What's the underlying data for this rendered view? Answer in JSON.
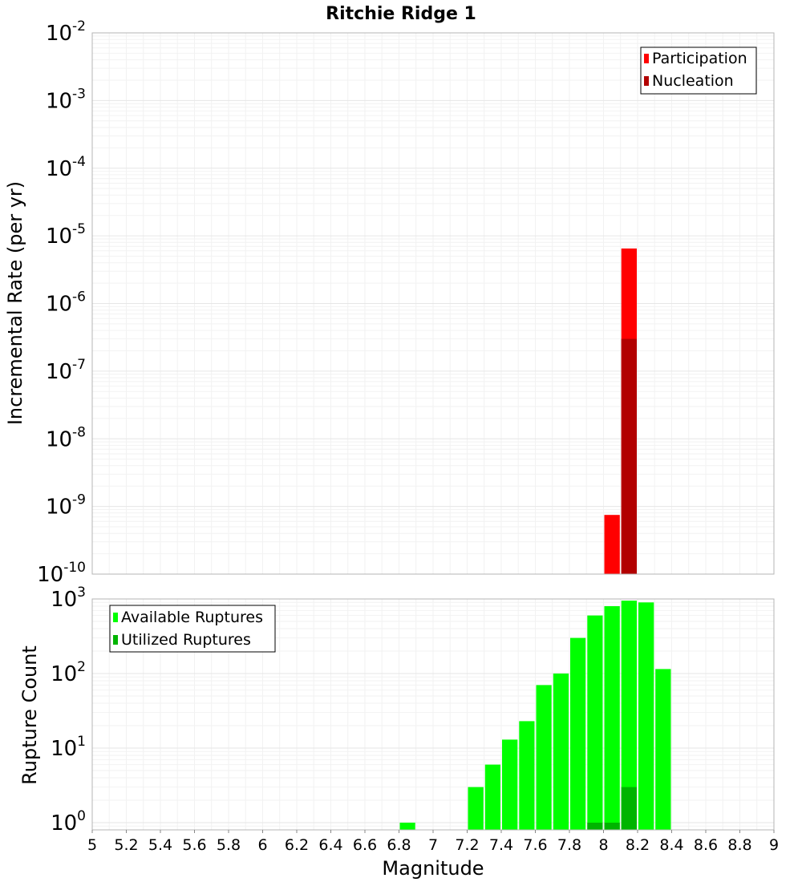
{
  "title": "Ritchie Ridge 1",
  "colors": {
    "participation": "#ff0000",
    "nucleation": "#b20000",
    "available": "#00ff00",
    "utilized": "#00b400",
    "grid_major": "#e6e6e6",
    "grid_minor": "#f2f2f2",
    "frame": "#b4b4b4"
  },
  "chart_data": [
    {
      "type": "bar",
      "name": "rates",
      "ylabel": "Incremental Rate (per yr)",
      "yscale": "log",
      "ylim_exponents": [
        -10,
        -2
      ],
      "ytick_base": "10",
      "ytick_exponents": [
        "-2",
        "-3",
        "-4",
        "-5",
        "-6",
        "-7",
        "-8",
        "-9",
        "-10"
      ],
      "xlim": [
        5,
        9
      ],
      "bin_width": 0.1,
      "grid": true,
      "legend_placement": "top-right",
      "series": [
        {
          "name": "Participation",
          "color_key": "participation",
          "x": [
            8.05,
            8.15
          ],
          "values": [
            7.5e-10,
            6.5e-06
          ]
        },
        {
          "name": "Nucleation",
          "color_key": "nucleation",
          "x": [
            8.15
          ],
          "values": [
            3e-07
          ]
        }
      ]
    },
    {
      "type": "bar",
      "name": "counts",
      "ylabel": "Rupture Count",
      "xlabel": "Magnitude",
      "yscale": "log",
      "ylim": [
        0.8,
        1000
      ],
      "ytick_base": "10",
      "ytick_exponents": [
        "3",
        "2",
        "1",
        "0"
      ],
      "xlim": [
        5,
        9
      ],
      "xticks": [
        "5",
        "5.2",
        "5.4",
        "5.6",
        "5.8",
        "6",
        "6.2",
        "6.4",
        "6.6",
        "6.8",
        "7",
        "7.2",
        "7.4",
        "7.6",
        "7.8",
        "8",
        "8.2",
        "8.4",
        "8.6",
        "8.8",
        "9"
      ],
      "bin_width": 0.1,
      "grid": true,
      "legend_placement": "top-left",
      "series": [
        {
          "name": "Available Ruptures",
          "color_key": "available",
          "x": [
            6.85,
            7.25,
            7.35,
            7.45,
            7.55,
            7.65,
            7.75,
            7.85,
            7.95,
            8.05,
            8.15,
            8.25,
            8.35
          ],
          "values": [
            1,
            3,
            6,
            13,
            23,
            70,
            100,
            300,
            600,
            800,
            950,
            900,
            115
          ]
        },
        {
          "name": "Utilized Ruptures",
          "color_key": "utilized",
          "x": [
            7.95,
            8.05,
            8.15
          ],
          "values": [
            1,
            1,
            3
          ]
        }
      ]
    }
  ]
}
